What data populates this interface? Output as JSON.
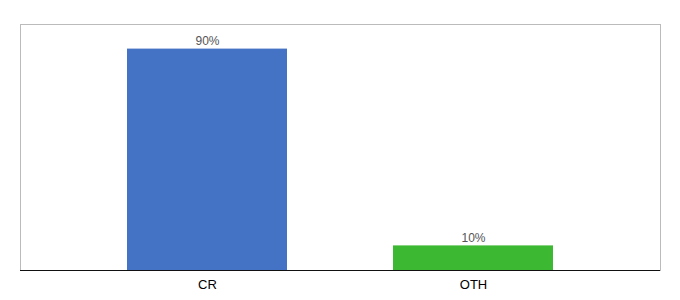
{
  "chart_data": {
    "type": "bar",
    "categories": [
      "CR",
      "OTH"
    ],
    "values": [
      90,
      10
    ],
    "value_labels": [
      "90%",
      "10%"
    ],
    "colors": [
      "#4472c4",
      "#3cb832"
    ],
    "ylim": [
      0,
      100
    ],
    "tick_labels": "x"
  }
}
